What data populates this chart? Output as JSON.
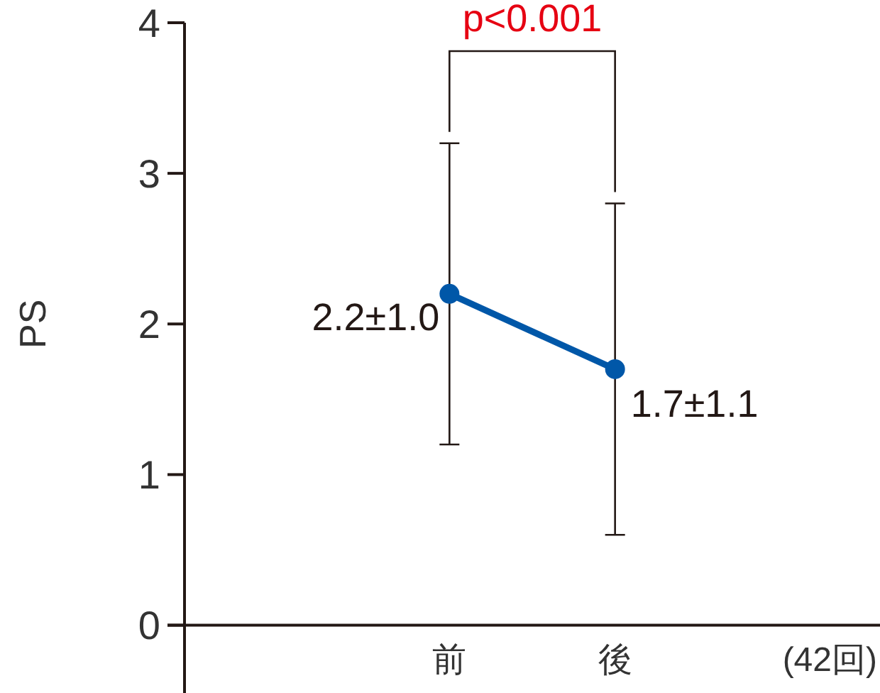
{
  "chart_data": {
    "type": "line",
    "ylabel": "PS",
    "xlabel": "(42回)",
    "categories": [
      "前",
      "後"
    ],
    "series": [
      {
        "color": "#0057a8",
        "values": [
          2.2,
          1.7
        ],
        "errors": [
          1.0,
          1.1
        ],
        "value_labels": [
          "2.2±1.0",
          "1.7±1.1"
        ]
      }
    ],
    "ylim": [
      -0.45,
      4
    ],
    "yticks": [
      0,
      1,
      2,
      3,
      4
    ],
    "marker": "circle",
    "annotations": [
      "p<0.001"
    ]
  }
}
